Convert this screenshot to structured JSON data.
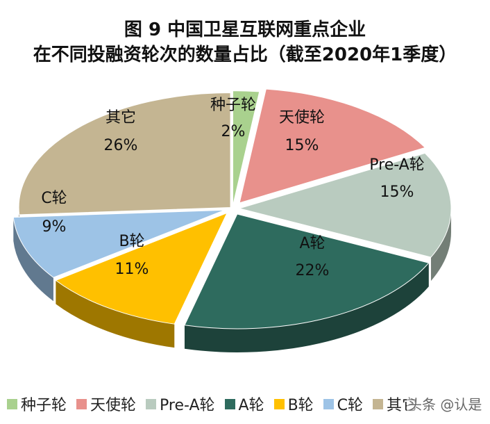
{
  "chart_data": {
    "type": "pie",
    "title": "图 9  中国卫星互联网重点企业",
    "subtitle": "在不同投融资轮次的数量占比（截至2020年1季度）",
    "slices": [
      {
        "label": "种子轮",
        "value": 2,
        "value_label": "2%",
        "color": "#a9d18e"
      },
      {
        "label": "天使轮",
        "value": 15,
        "value_label": "15%",
        "color": "#e8918c"
      },
      {
        "label": "Pre-A轮",
        "value": 15,
        "value_label": "15%",
        "color": "#b9cbbf"
      },
      {
        "label": "A轮",
        "value": 22,
        "value_label": "22%",
        "color": "#2e6b5e"
      },
      {
        "label": "B轮",
        "value": 11,
        "value_label": "11%",
        "color": "#ffc000"
      },
      {
        "label": "C轮",
        "value": 9,
        "value_label": "9%",
        "color": "#9dc3e6"
      },
      {
        "label": "其它",
        "value": 26,
        "value_label": "26%",
        "color": "#c4b592"
      }
    ],
    "legend_position": "bottom"
  },
  "watermark": "头条 @认是"
}
